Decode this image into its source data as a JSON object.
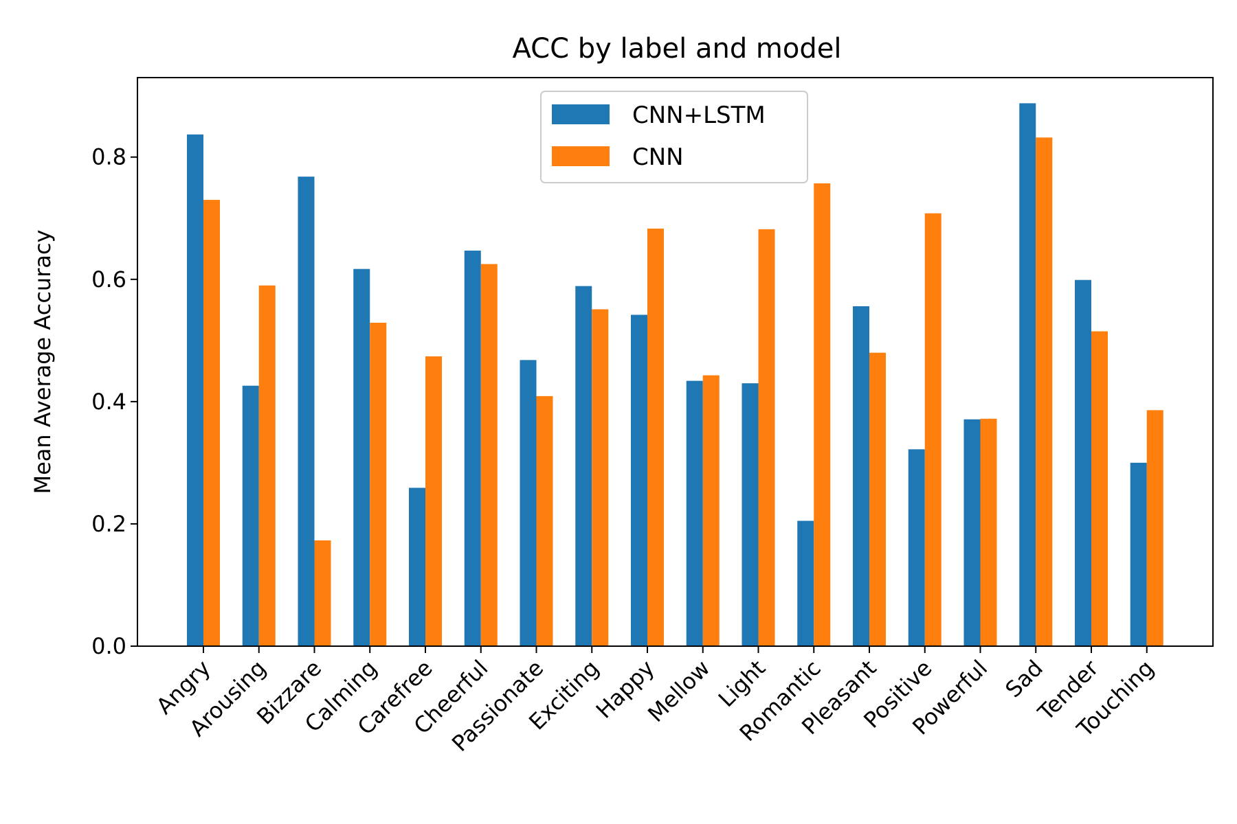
{
  "chart_data": {
    "type": "bar",
    "title": "ACC by label and model",
    "xlabel": "",
    "ylabel": "Mean Average Accuracy",
    "ylim": [
      0,
      0.93
    ],
    "yticks": [
      0.0,
      0.2,
      0.4,
      0.6,
      0.8
    ],
    "ytick_labels": [
      "0.0",
      "0.2",
      "0.4",
      "0.6",
      "0.8"
    ],
    "grid": false,
    "legend_position": "top-center",
    "categories": [
      "Angry",
      "Arousing",
      "Bizzare",
      "Calming",
      "Carefree",
      "Cheerful",
      "Passionate",
      "Exciting",
      "Happy",
      "Mellow",
      "Light",
      "Romantic",
      "Pleasant",
      "Positive",
      "Powerful",
      "Sad",
      "Tender",
      "Touching"
    ],
    "series": [
      {
        "name": "CNN+LSTM",
        "color": "#1f77b4",
        "values": [
          0.837,
          0.426,
          0.768,
          0.617,
          0.259,
          0.647,
          0.468,
          0.589,
          0.542,
          0.434,
          0.43,
          0.205,
          0.556,
          0.322,
          0.371,
          0.888,
          0.599,
          0.3
        ]
      },
      {
        "name": "CNN",
        "color": "#ff7f0e",
        "values": [
          0.73,
          0.59,
          0.173,
          0.529,
          0.474,
          0.625,
          0.409,
          0.551,
          0.683,
          0.443,
          0.682,
          0.757,
          0.48,
          0.708,
          0.372,
          0.832,
          0.515,
          0.386
        ]
      }
    ]
  }
}
